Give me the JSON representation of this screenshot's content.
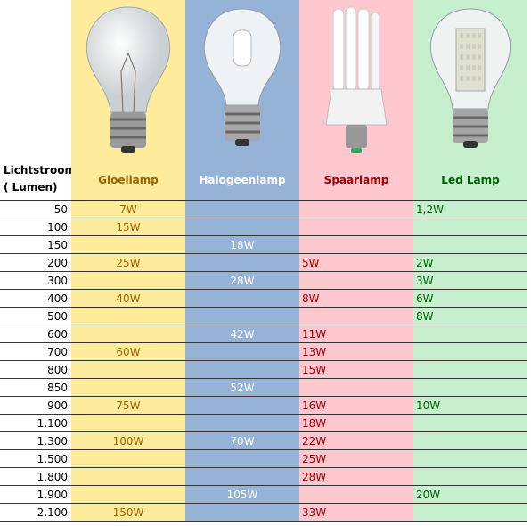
{
  "table": {
    "header": {
      "first": [
        "Lichtstroom",
        "( Lumen)"
      ],
      "columns": [
        "Gloeilamp",
        "Halogeenlamp",
        "Spaarlamp",
        "Led Lamp"
      ]
    },
    "rows": [
      [
        "50",
        "7W",
        null,
        null,
        "1,2W"
      ],
      [
        "100",
        "15W",
        null,
        null,
        null
      ],
      [
        "150",
        null,
        "18W",
        null,
        null
      ],
      [
        "200",
        "25W",
        null,
        "5W",
        "2W"
      ],
      [
        "300",
        null,
        "28W",
        null,
        "3W"
      ],
      [
        "400",
        "40W",
        null,
        "8W",
        "6W"
      ],
      [
        "500",
        null,
        null,
        null,
        "8W"
      ],
      [
        "600",
        null,
        "42W",
        "11W",
        null
      ],
      [
        "700",
        "60W",
        null,
        "13W",
        null
      ],
      [
        "800",
        null,
        null,
        "15W",
        null
      ],
      [
        "850",
        null,
        "52W",
        null,
        null
      ],
      [
        "900",
        "75W",
        null,
        "16W",
        "10W"
      ],
      [
        "1.100",
        null,
        null,
        "18W",
        null
      ],
      [
        "1.300",
        "100W",
        "70W",
        "22W",
        null
      ],
      [
        "1.500",
        null,
        null,
        "25W",
        null
      ],
      [
        "1.800",
        null,
        null,
        "28W",
        null
      ],
      [
        "1.900",
        null,
        "105W",
        null,
        "20W"
      ],
      [
        "2.100",
        "150W",
        null,
        "33W",
        null
      ]
    ]
  }
}
